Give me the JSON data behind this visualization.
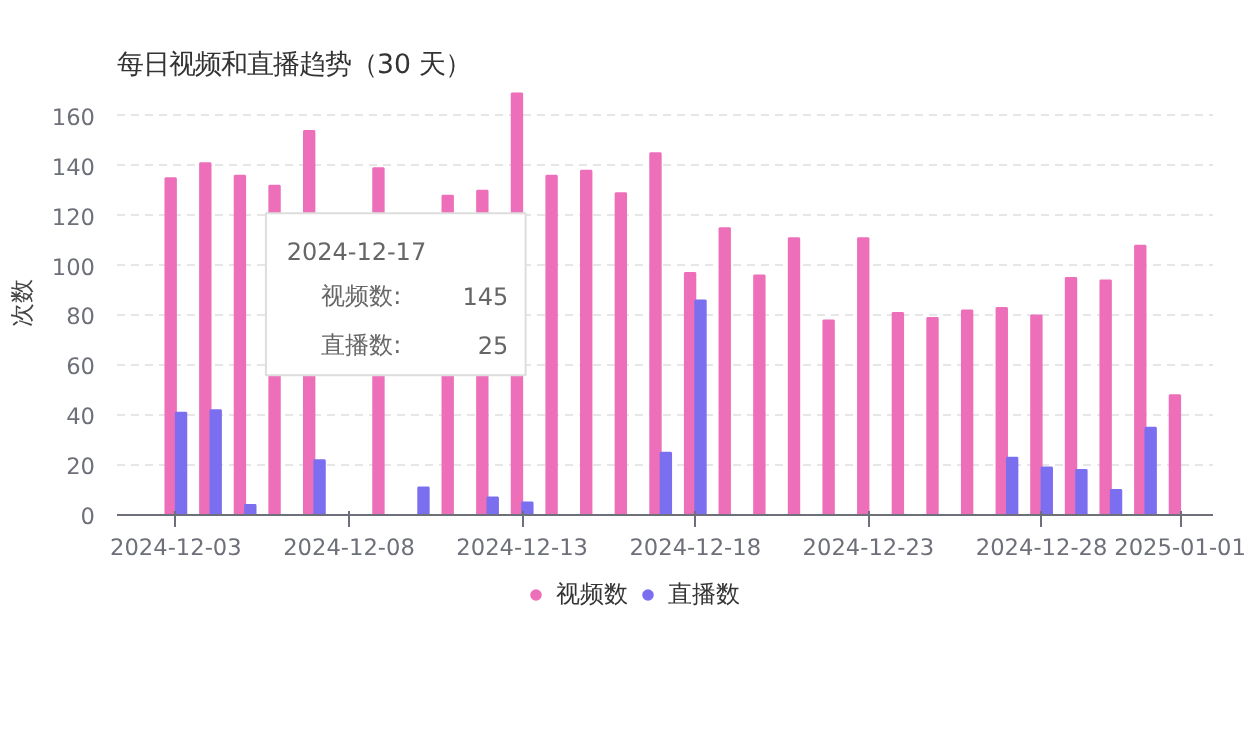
{
  "chart_data": {
    "type": "bar",
    "title": "每日视频和直播趋势（30 天）",
    "ylabel": "次数",
    "categories": [
      "2024-12-03",
      null,
      null,
      null,
      null,
      "2024-12-08",
      null,
      null,
      null,
      null,
      "2024-12-13",
      null,
      null,
      null,
      null,
      "2024-12-18",
      null,
      null,
      null,
      null,
      "2024-12-23",
      null,
      null,
      null,
      null,
      "2024-12-28",
      null,
      null,
      null,
      "2025-01-01"
    ],
    "series": [
      {
        "name": "视频数",
        "color": "#ee6fb9",
        "values": [
          135,
          141,
          136,
          132,
          154,
          null,
          139,
          null,
          128,
          130,
          169,
          136,
          138,
          129,
          145,
          97,
          115,
          96,
          111,
          78,
          111,
          81,
          79,
          82,
          83,
          80,
          95,
          94,
          108,
          48
        ]
      },
      {
        "name": "直播数",
        "color": "#7b6ff0",
        "values": [
          41,
          42,
          4,
          null,
          22,
          null,
          null,
          11,
          null,
          7,
          5,
          0,
          0,
          0,
          25,
          86,
          0,
          0,
          0,
          0,
          0,
          0,
          0,
          0,
          23,
          19,
          18,
          10,
          35,
          0
        ]
      }
    ],
    "ylim": [
      0,
      170
    ],
    "yticks": [
      0,
      20,
      40,
      60,
      80,
      100,
      120,
      140,
      160
    ],
    "grid": "y",
    "legend": "bottom",
    "annotations": [
      "2024-12-17",
      "视频数:",
      "145",
      "直播数:",
      "25"
    ]
  }
}
